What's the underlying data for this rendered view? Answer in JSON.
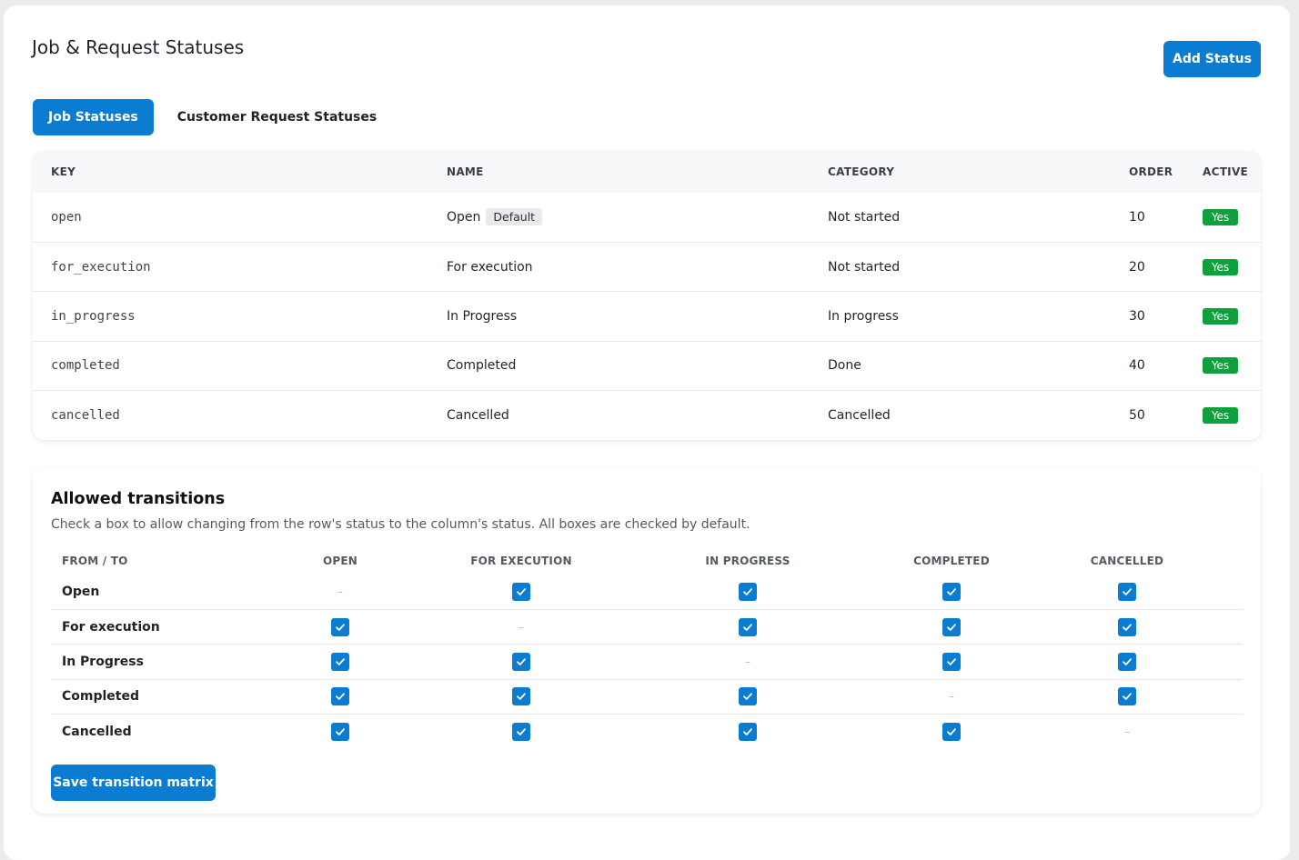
{
  "page": {
    "title": "Job & Request Statuses"
  },
  "header": {
    "add_status_label": "Add Status"
  },
  "tabs": [
    {
      "label": "Job Statuses",
      "active": true
    },
    {
      "label": "Customer Request Statuses",
      "active": false
    }
  ],
  "status_table": {
    "columns": [
      "KEY",
      "NAME",
      "CATEGORY",
      "ORDER",
      "ACTIVE"
    ],
    "rows": [
      {
        "key": "open",
        "name": "Open",
        "badge": "Default",
        "category": "Not started",
        "order": "10",
        "active": "Yes"
      },
      {
        "key": "for_execution",
        "name": "For execution",
        "badge": "",
        "category": "Not started",
        "order": "20",
        "active": "Yes"
      },
      {
        "key": "in_progress",
        "name": "In Progress",
        "badge": "",
        "category": "In progress",
        "order": "30",
        "active": "Yes"
      },
      {
        "key": "completed",
        "name": "Completed",
        "badge": "",
        "category": "Done",
        "order": "40",
        "active": "Yes"
      },
      {
        "key": "cancelled",
        "name": "Cancelled",
        "badge": "",
        "category": "Cancelled",
        "order": "50",
        "active": "Yes"
      }
    ]
  },
  "transitions": {
    "title": "Allowed transitions",
    "subtitle": "Check a box to allow changing from the row's status to the column's status. All boxes are checked by default.",
    "from_to_label": "FROM / TO",
    "columns": [
      "OPEN",
      "FOR EXECUTION",
      "IN PROGRESS",
      "COMPLETED",
      "CANCELLED"
    ],
    "rows": [
      {
        "label": "Open",
        "cells": [
          null,
          true,
          true,
          true,
          true
        ]
      },
      {
        "label": "For execution",
        "cells": [
          true,
          null,
          true,
          true,
          true
        ]
      },
      {
        "label": "In Progress",
        "cells": [
          true,
          true,
          null,
          true,
          true
        ]
      },
      {
        "label": "Completed",
        "cells": [
          true,
          true,
          true,
          null,
          true
        ]
      },
      {
        "label": "Cancelled",
        "cells": [
          true,
          true,
          true,
          true,
          null
        ]
      }
    ],
    "self_placeholder": "–",
    "save_label": "Save transition matrix"
  },
  "colors": {
    "accent": "#0a7cd1",
    "active_badge": "#0f9f3c"
  }
}
